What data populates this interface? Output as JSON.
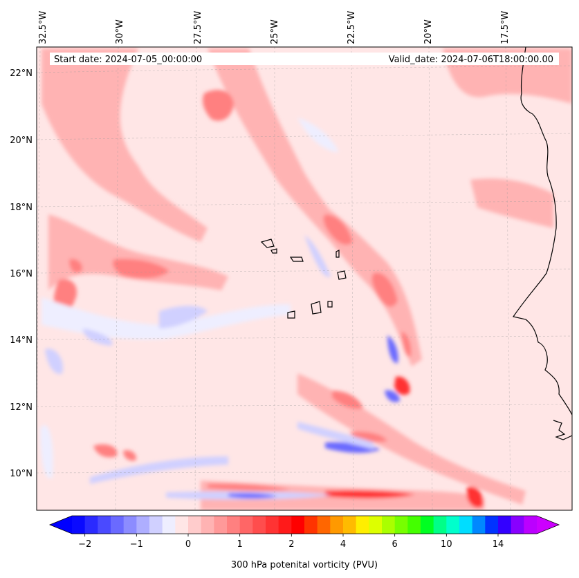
{
  "map": {
    "header": {
      "start_date": "Start date: 2024-07-05_00:00:00",
      "valid_date": "Valid_date: 2024-07-06T18:00:00.00"
    },
    "longitude_labels": [
      "32.5°W",
      "30°W",
      "27.5°W",
      "25°W",
      "22.5°W",
      "20°W",
      "17.5°W"
    ],
    "latitude_labels": [
      "22°N",
      "20°N",
      "18°N",
      "16°N",
      "14°N",
      "12°N",
      "10°N"
    ],
    "colorbar": {
      "label": "300 hPa potenital vorticity (PVU)",
      "tick_labels": [
        "−2",
        "−1",
        "0",
        "1",
        "2",
        "4",
        "6",
        "10",
        "14"
      ],
      "colors": [
        "#0a0aff",
        "#2a2aff",
        "#4a4aff",
        "#6a6aff",
        "#8c8cff",
        "#aeaeff",
        "#d0d0ff",
        "#eeeeff",
        "#ffe6e6",
        "#ffcccc",
        "#ffb3b3",
        "#ff9999",
        "#ff8080",
        "#ff6666",
        "#ff4d4d",
        "#ff3333",
        "#ff1a1a",
        "#ff0000",
        "#ff3300",
        "#ff6600",
        "#ff9900",
        "#ffbb00",
        "#ffee00",
        "#ddff00",
        "#aaff00",
        "#77ff00",
        "#44ff00",
        "#00ff22",
        "#00ff88",
        "#00ffcc",
        "#00ddff",
        "#0088ff",
        "#0033ff",
        "#3300ff",
        "#8800ff",
        "#bb00ff"
      ],
      "extend_min_color": "#0000ff",
      "extend_max_color": "#cc00ff"
    },
    "field_colors": {
      "background": "#ffe6e6",
      "weak_negative": "#eeeeff",
      "negative": "#d0d0ff",
      "strong_negative": "#6a6aff",
      "weak_positive": "#ffcccc",
      "positive": "#ffb3b3",
      "strong_positive": "#ff8080",
      "peak_positive": "#ff3333"
    }
  }
}
